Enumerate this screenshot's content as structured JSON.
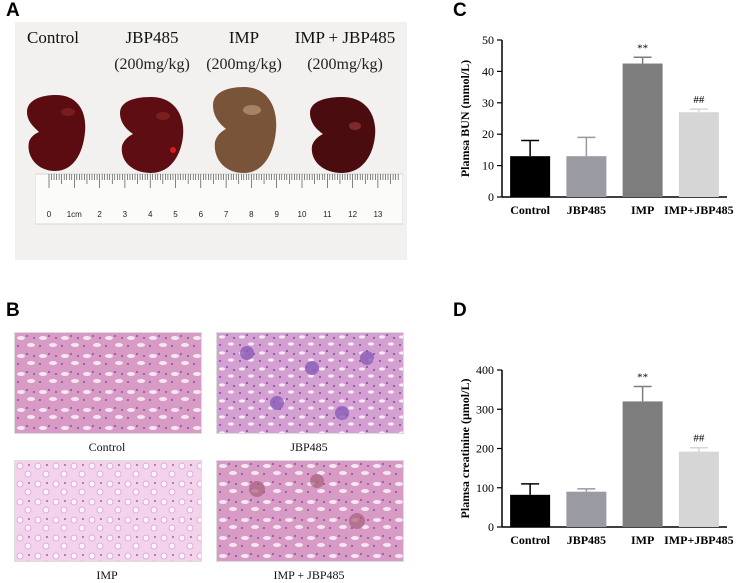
{
  "panels": {
    "a": "A",
    "b": "B",
    "c": "C",
    "d": "D"
  },
  "panel_a": {
    "groups": [
      "Control",
      "JBP485",
      "IMP",
      "IMP + JBP485"
    ],
    "doses": [
      "(200mg/kg)",
      "(200mg/kg)",
      "(200mg/kg)"
    ],
    "ruler_ticks": [
      "0",
      "1cm",
      "2",
      "3",
      "4",
      "5",
      "6",
      "7",
      "8",
      "9",
      "10",
      "11",
      "12",
      "13"
    ]
  },
  "panel_b": {
    "captions": [
      "Control",
      "JBP485",
      "IMP",
      "IMP + JBP485"
    ]
  },
  "chart_data": [
    {
      "type": "bar",
      "panel": "C",
      "categories": [
        "Control",
        "JBP485",
        "IMP",
        "IMP+JBP485"
      ],
      "values": [
        13,
        13,
        42.5,
        27
      ],
      "errors": [
        5,
        6,
        2,
        1
      ],
      "annotations": [
        "",
        "",
        "**",
        "##"
      ],
      "colors": [
        "#000000",
        "#9a9aa2",
        "#7d7d7d",
        "#d6d6d6"
      ],
      "ylabel": "Plamsa BUN (mmol/L)",
      "ylim": [
        0,
        50
      ],
      "yticks": [
        0,
        10,
        20,
        30,
        40,
        50
      ]
    },
    {
      "type": "bar",
      "panel": "D",
      "categories": [
        "Control",
        "JBP485",
        "IMP",
        "IMP+JBP485"
      ],
      "values": [
        82,
        90,
        320,
        192
      ],
      "errors": [
        28,
        7,
        38,
        10
      ],
      "annotations": [
        "",
        "",
        "**",
        "##"
      ],
      "colors": [
        "#000000",
        "#9a9aa2",
        "#7d7d7d",
        "#d6d6d6"
      ],
      "ylabel": "Plamsa creatinine (μmol/L)",
      "ylim": [
        0,
        400
      ],
      "yticks": [
        0,
        100,
        200,
        300,
        400
      ]
    }
  ]
}
